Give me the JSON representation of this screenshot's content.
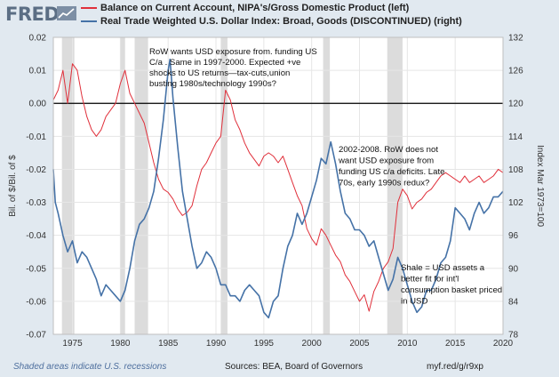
{
  "header": {
    "logo_text": "FRED",
    "logo_icon": "chart-line-icon"
  },
  "chart_data": {
    "type": "line",
    "series": [
      {
        "name": "Balance on Current Account, NIPA's/Gross Domestic Product (left)",
        "axis": "left",
        "color": "#e0303b",
        "x": [
          1973.0,
          1973.5,
          1974.0,
          1974.5,
          1975.0,
          1975.5,
          1976.0,
          1976.5,
          1977.0,
          1977.5,
          1978.0,
          1978.5,
          1979.0,
          1979.5,
          1980.0,
          1980.5,
          1981.0,
          1981.5,
          1982.0,
          1982.5,
          1983.0,
          1983.5,
          1984.0,
          1984.5,
          1985.0,
          1985.5,
          1986.0,
          1986.5,
          1987.0,
          1987.5,
          1988.0,
          1988.5,
          1989.0,
          1989.5,
          1990.0,
          1990.5,
          1991.0,
          1991.5,
          1992.0,
          1992.5,
          1993.0,
          1993.5,
          1994.0,
          1994.5,
          1995.0,
          1995.5,
          1996.0,
          1996.5,
          1997.0,
          1997.5,
          1998.0,
          1998.5,
          1999.0,
          1999.5,
          2000.0,
          2000.5,
          2001.0,
          2001.5,
          2002.0,
          2002.5,
          2003.0,
          2003.5,
          2004.0,
          2004.5,
          2005.0,
          2005.5,
          2006.0,
          2006.5,
          2007.0,
          2007.5,
          2008.0,
          2008.5,
          2009.0,
          2009.5,
          2010.0,
          2010.5,
          2011.0,
          2011.5,
          2012.0,
          2012.5,
          2013.0,
          2013.5,
          2014.0,
          2014.5,
          2015.0,
          2015.5,
          2016.0,
          2016.5,
          2017.0,
          2017.5,
          2018.0,
          2018.5,
          2019.0,
          2019.5,
          2020.0
        ],
        "y": [
          0.001,
          0.004,
          0.01,
          0.0,
          0.012,
          0.01,
          0.002,
          -0.004,
          -0.008,
          -0.01,
          -0.008,
          -0.004,
          -0.002,
          0.0,
          0.006,
          0.01,
          0.003,
          0.0,
          -0.003,
          -0.006,
          -0.012,
          -0.018,
          -0.023,
          -0.026,
          -0.027,
          -0.029,
          -0.032,
          -0.034,
          -0.033,
          -0.031,
          -0.025,
          -0.02,
          -0.018,
          -0.015,
          -0.012,
          -0.01,
          0.004,
          0.001,
          -0.005,
          -0.008,
          -0.012,
          -0.015,
          -0.017,
          -0.019,
          -0.016,
          -0.015,
          -0.016,
          -0.018,
          -0.016,
          -0.02,
          -0.024,
          -0.028,
          -0.031,
          -0.038,
          -0.041,
          -0.043,
          -0.038,
          -0.04,
          -0.043,
          -0.046,
          -0.048,
          -0.052,
          -0.054,
          -0.057,
          -0.06,
          -0.058,
          -0.063,
          -0.057,
          -0.054,
          -0.05,
          -0.048,
          -0.044,
          -0.03,
          -0.026,
          -0.028,
          -0.032,
          -0.03,
          -0.029,
          -0.027,
          -0.026,
          -0.024,
          -0.022,
          -0.021,
          -0.022,
          -0.023,
          -0.024,
          -0.022,
          -0.024,
          -0.023,
          -0.022,
          -0.024,
          -0.023,
          -0.022,
          -0.02,
          -0.021
        ]
      },
      {
        "name": "Real Trade Weighted U.S. Dollar Index: Broad, Goods (DISCONTINUED) (right)",
        "axis": "right",
        "color": "#4572a7",
        "x": [
          1973.0,
          1973.2,
          1973.5,
          1974.0,
          1974.5,
          1975.0,
          1975.5,
          1976.0,
          1976.5,
          1977.0,
          1977.5,
          1978.0,
          1978.5,
          1979.0,
          1979.5,
          1980.0,
          1980.5,
          1981.0,
          1981.5,
          1982.0,
          1982.5,
          1983.0,
          1983.5,
          1984.0,
          1984.5,
          1985.0,
          1985.2,
          1985.5,
          1986.0,
          1986.5,
          1987.0,
          1987.5,
          1988.0,
          1988.5,
          1989.0,
          1989.5,
          1990.0,
          1990.5,
          1991.0,
          1991.5,
          1992.0,
          1992.5,
          1993.0,
          1993.5,
          1994.0,
          1994.5,
          1995.0,
          1995.5,
          1996.0,
          1996.5,
          1997.0,
          1997.5,
          1998.0,
          1998.5,
          1999.0,
          1999.5,
          2000.0,
          2000.5,
          2001.0,
          2001.5,
          2002.0,
          2002.5,
          2003.0,
          2003.5,
          2004.0,
          2004.5,
          2005.0,
          2005.5,
          2006.0,
          2006.5,
          2007.0,
          2007.5,
          2008.0,
          2008.5,
          2009.0,
          2009.5,
          2010.0,
          2010.5,
          2011.0,
          2011.5,
          2012.0,
          2012.5,
          2013.0,
          2013.5,
          2014.0,
          2014.5,
          2015.0,
          2015.5,
          2016.0,
          2016.5,
          2017.0,
          2017.5,
          2018.0,
          2018.5,
          2019.0,
          2019.5,
          2020.0
        ],
        "y": [
          108,
          102,
          100,
          96,
          93,
          95,
          91,
          93,
          92,
          90,
          88,
          85,
          87,
          86,
          85,
          84,
          86,
          90,
          95,
          98,
          99,
          101,
          104,
          110,
          117,
          126,
          128,
          121,
          112,
          104,
          99,
          94,
          90,
          91,
          93,
          92,
          90,
          87,
          87,
          85,
          85,
          84,
          86,
          87,
          86,
          85,
          82,
          81,
          84,
          85,
          90,
          94,
          96,
          100,
          98,
          100,
          103,
          106,
          110,
          109,
          113,
          109,
          104,
          100,
          99,
          97,
          97,
          96,
          94,
          95,
          92,
          89,
          86,
          88,
          92,
          90,
          87,
          84,
          82,
          83,
          86,
          86,
          88,
          91,
          92,
          95,
          101,
          100,
          99,
          97,
          100,
          102,
          100,
          101,
          103,
          103,
          104
        ]
      }
    ],
    "x_ticks": [
      "1975",
      "1980",
      "1985",
      "1990",
      "1995",
      "2000",
      "2005",
      "2010",
      "2015",
      "2020"
    ],
    "x_tick_values": [
      1975,
      1980,
      1985,
      1990,
      1995,
      2000,
      2005,
      2010,
      2015,
      2020
    ],
    "xlim": [
      1973,
      2020
    ],
    "left_ticks": [
      "0.02",
      "0.01",
      "0.00",
      "-0.01",
      "-0.02",
      "-0.03",
      "-0.04",
      "-0.05",
      "-0.06",
      "-0.07"
    ],
    "left_tick_values": [
      0.02,
      0.01,
      0.0,
      -0.01,
      -0.02,
      -0.03,
      -0.04,
      -0.05,
      -0.06,
      -0.07
    ],
    "ylim_left": [
      -0.07,
      0.02
    ],
    "right_ticks": [
      "132",
      "126",
      "120",
      "114",
      "108",
      "102",
      "96",
      "90",
      "84",
      "78"
    ],
    "right_tick_values": [
      132,
      126,
      120,
      114,
      108,
      102,
      96,
      90,
      84,
      78
    ],
    "ylim_right": [
      78,
      132
    ],
    "ylabel_left": "Bil. of $/Bil. of $",
    "ylabel_right": "Index Mar 1973=100",
    "recessions": [
      [
        1973.9,
        1975.2
      ],
      [
        1980.0,
        1980.5
      ],
      [
        1981.5,
        1982.9
      ],
      [
        1990.5,
        1991.2
      ],
      [
        2001.2,
        2001.9
      ],
      [
        2007.9,
        2009.5
      ]
    ],
    "reference_line_value": 0.0,
    "annotations": [
      {
        "id": "row-usd-1997",
        "lines": [
          "RoW wants USD exposure from. funding US",
          "C/a . Same in 1997-2000.  Expected +ve",
          "shocks to US returns—tax-cuts,union",
          "busting 1980s/technology 1990s?"
        ]
      },
      {
        "id": "row-2002",
        "lines": [
          "2002-2008. RoW does not",
          "want USD exposure from",
          "funding US c/a deficits. Late",
          "70s, early 1990s redux?"
        ]
      },
      {
        "id": "shale",
        "lines": [
          "Shale = USD assets  a",
          "better fit for int'l",
          "consumption basket priced",
          "in USD"
        ]
      }
    ]
  },
  "footer": {
    "recessions_note": "Shaded areas indicate U.S. recessions",
    "sources": "Sources: BEA, Board of Governors",
    "url": "myf.red/g/r9xp"
  }
}
